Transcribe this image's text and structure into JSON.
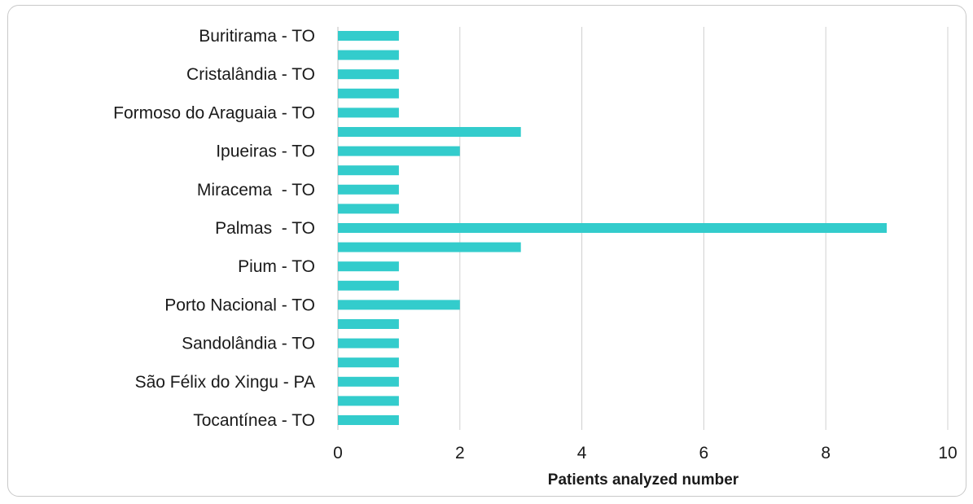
{
  "chart_data": {
    "type": "bar",
    "orientation": "horizontal",
    "title": "",
    "xlabel": "Patients analyzed number",
    "ylabel": "",
    "xlim": [
      0,
      10
    ],
    "xticks": [
      0,
      2,
      4,
      6,
      8,
      10
    ],
    "grid": "vertical",
    "color": "#33cccc",
    "categories": [
      "Buritirama - TO",
      "",
      "Cristalândia - TO",
      "",
      "Formoso do Araguaia - TO",
      "",
      "Ipueiras - TO",
      "",
      "Miracema  - TO",
      "",
      "Palmas  - TO",
      "",
      "Pium - TO",
      "",
      "Porto Nacional - TO",
      "",
      "Sandolândia - TO",
      "",
      "São Félix do Xingu - PA",
      "",
      "Tocantínea - TO"
    ],
    "values": [
      1,
      1,
      1,
      1,
      1,
      3,
      2,
      1,
      1,
      1,
      9,
      3,
      1,
      1,
      2,
      1,
      1,
      1,
      1,
      1,
      1
    ]
  }
}
